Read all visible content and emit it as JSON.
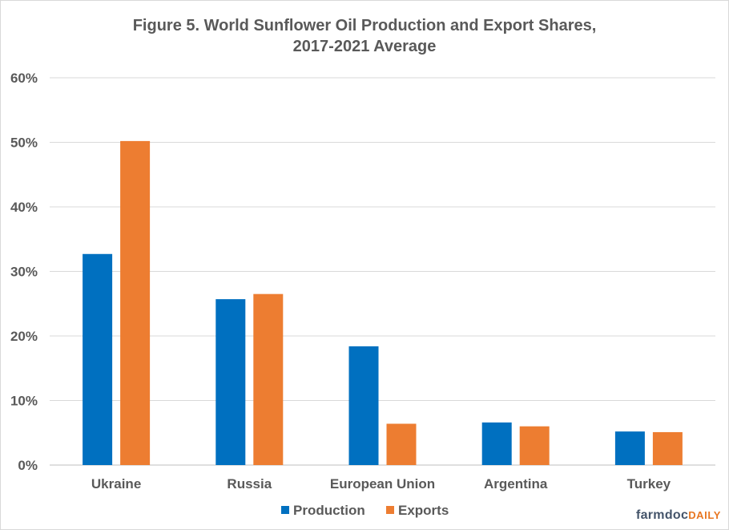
{
  "chart_data": {
    "type": "bar",
    "title": "Figure  5. World Sunflower Oil Production  and Export Shares,",
    "subtitle": "2017-2021  Average",
    "categories": [
      "Ukraine",
      "Russia",
      "European Union",
      "Argentina",
      "Turkey"
    ],
    "series": [
      {
        "name": "Production",
        "color": "#0070c0",
        "values": [
          32.7,
          25.7,
          18.4,
          6.6,
          5.2
        ]
      },
      {
        "name": "Exports",
        "color": "#ed7d31",
        "values": [
          50.2,
          26.5,
          6.4,
          6.0,
          5.1
        ]
      }
    ],
    "yticks": [
      "0%",
      "10%",
      "20%",
      "30%",
      "40%",
      "50%",
      "60%"
    ],
    "ylim": [
      0,
      60
    ],
    "grid": true,
    "legend": "bottom"
  },
  "brand": {
    "part1": "farmdoc",
    "part2": "DAILY"
  }
}
